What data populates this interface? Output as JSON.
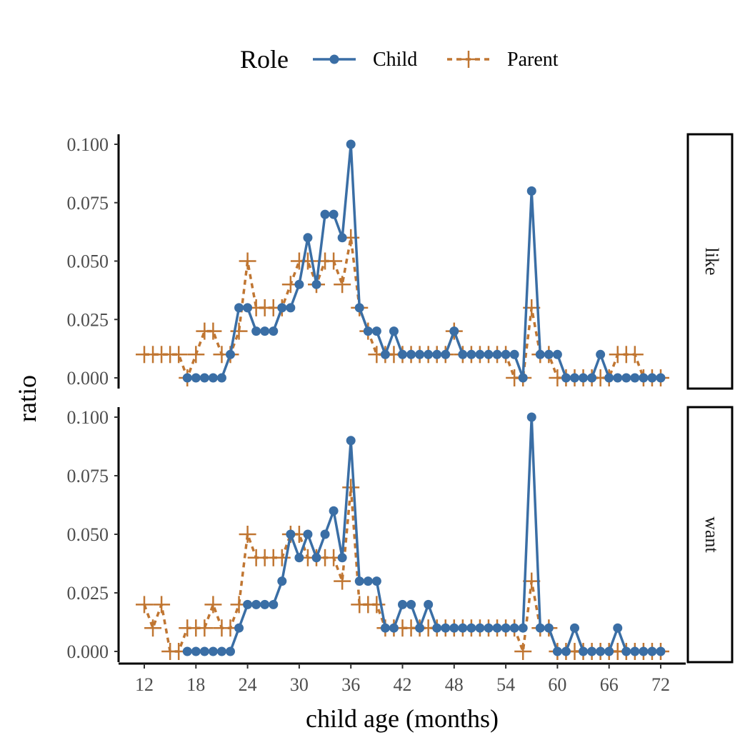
{
  "chart_data": {
    "type": "line",
    "legend": {
      "title": "Role",
      "placement": "top",
      "entries": [
        {
          "name": "Child",
          "color": "#3a6ea5",
          "line": "solid",
          "marker": "circle"
        },
        {
          "name": "Parent",
          "color": "#c07632",
          "line": "dashed",
          "marker": "plus"
        }
      ]
    },
    "xlabel": "child age (months)",
    "ylabel": "ratio",
    "xlim": [
      12,
      72
    ],
    "ylim": [
      0,
      0.1
    ],
    "x_ticks": [
      "12",
      "18",
      "24",
      "30",
      "36",
      "42",
      "48",
      "54",
      "60",
      "66",
      "72"
    ],
    "y_ticks": [
      "0.000",
      "0.025",
      "0.050",
      "0.075",
      "0.100"
    ],
    "grid": false,
    "facets": [
      {
        "label": "like",
        "series": [
          {
            "name": "Child",
            "x": [
              17,
              18,
              19,
              20,
              21,
              22,
              23,
              24,
              25,
              26,
              27,
              28,
              29,
              30,
              31,
              32,
              33,
              34,
              35,
              36,
              37,
              38,
              39,
              40,
              41,
              42,
              43,
              44,
              45,
              46,
              47,
              48,
              49,
              50,
              51,
              52,
              53,
              54,
              55,
              56,
              57,
              58,
              59,
              60,
              61,
              62,
              63,
              64,
              65,
              66,
              67,
              68,
              69,
              70,
              71,
              72
            ],
            "values": [
              0,
              0,
              0,
              0,
              0,
              0.01,
              0.03,
              0.03,
              0.02,
              0.02,
              0.02,
              0.03,
              0.03,
              0.04,
              0.06,
              0.04,
              0.07,
              0.07,
              0.06,
              0.1,
              0.03,
              0.02,
              0.02,
              0.01,
              0.02,
              0.01,
              0.01,
              0.01,
              0.01,
              0.01,
              0.01,
              0.02,
              0.01,
              0.01,
              0.01,
              0.01,
              0.01,
              0.01,
              0.01,
              0,
              0.08,
              0.01,
              0.01,
              0.01,
              0,
              0,
              0,
              0,
              0.01,
              0,
              0,
              0,
              0,
              0,
              0,
              0
            ]
          },
          {
            "name": "Parent",
            "x": [
              12,
              13,
              14,
              15,
              16,
              17,
              18,
              19,
              20,
              21,
              22,
              23,
              24,
              25,
              26,
              27,
              28,
              29,
              30,
              31,
              32,
              33,
              34,
              35,
              36,
              37,
              38,
              39,
              40,
              41,
              42,
              43,
              44,
              45,
              46,
              47,
              48,
              49,
              50,
              51,
              52,
              53,
              54,
              55,
              56,
              57,
              58,
              59,
              60,
              61,
              62,
              63,
              64,
              65,
              66,
              67,
              68,
              69,
              70,
              71,
              72
            ],
            "values": [
              0.01,
              0.01,
              0.01,
              0.01,
              0.01,
              0,
              0.01,
              0.02,
              0.02,
              0.01,
              0.01,
              0.02,
              0.05,
              0.03,
              0.03,
              0.03,
              0.03,
              0.04,
              0.05,
              0.05,
              0.04,
              0.05,
              0.05,
              0.04,
              0.06,
              0.03,
              0.02,
              0.01,
              0.01,
              0.01,
              0.01,
              0.01,
              0.01,
              0.01,
              0.01,
              0.01,
              0.02,
              0.01,
              0.01,
              0.01,
              0.01,
              0.01,
              0.01,
              0,
              0,
              0.03,
              0.01,
              0.01,
              0,
              0,
              0,
              0,
              0,
              0,
              0,
              0.01,
              0.01,
              0.01,
              0,
              0,
              0
            ]
          }
        ]
      },
      {
        "label": "want",
        "series": [
          {
            "name": "Child",
            "x": [
              17,
              18,
              19,
              20,
              21,
              22,
              23,
              24,
              25,
              26,
              27,
              28,
              29,
              30,
              31,
              32,
              33,
              34,
              35,
              36,
              37,
              38,
              39,
              40,
              41,
              42,
              43,
              44,
              45,
              46,
              47,
              48,
              49,
              50,
              51,
              52,
              53,
              54,
              55,
              56,
              57,
              58,
              59,
              60,
              61,
              62,
              63,
              64,
              65,
              66,
              67,
              68,
              69,
              70,
              71,
              72
            ],
            "values": [
              0,
              0,
              0,
              0,
              0,
              0,
              0.01,
              0.02,
              0.02,
              0.02,
              0.02,
              0.03,
              0.05,
              0.04,
              0.05,
              0.04,
              0.05,
              0.06,
              0.04,
              0.09,
              0.03,
              0.03,
              0.03,
              0.01,
              0.01,
              0.02,
              0.02,
              0.01,
              0.02,
              0.01,
              0.01,
              0.01,
              0.01,
              0.01,
              0.01,
              0.01,
              0.01,
              0.01,
              0.01,
              0.01,
              0.1,
              0.01,
              0.01,
              0,
              0,
              0.01,
              0,
              0,
              0,
              0,
              0.01,
              0,
              0,
              0,
              0,
              0
            ]
          },
          {
            "name": "Parent",
            "x": [
              12,
              13,
              14,
              15,
              16,
              17,
              18,
              19,
              20,
              21,
              22,
              23,
              24,
              25,
              26,
              27,
              28,
              29,
              30,
              31,
              32,
              33,
              34,
              35,
              36,
              37,
              38,
              39,
              40,
              41,
              42,
              43,
              44,
              45,
              46,
              47,
              48,
              49,
              50,
              51,
              52,
              53,
              54,
              55,
              56,
              57,
              58,
              59,
              60,
              61,
              62,
              63,
              64,
              65,
              66,
              67,
              68,
              69,
              70,
              71,
              72
            ],
            "values": [
              0.02,
              0.01,
              0.02,
              0,
              0,
              0.01,
              0.01,
              0.01,
              0.02,
              0.01,
              0.01,
              0.02,
              0.05,
              0.04,
              0.04,
              0.04,
              0.04,
              0.05,
              0.05,
              0.04,
              0.04,
              0.04,
              0.04,
              0.03,
              0.07,
              0.02,
              0.02,
              0.02,
              0.01,
              0.01,
              0.01,
              0.01,
              0.01,
              0.01,
              0.01,
              0.01,
              0.01,
              0.01,
              0.01,
              0.01,
              0.01,
              0.01,
              0.01,
              0.01,
              0,
              0.03,
              0.01,
              0.01,
              0,
              0,
              0,
              0,
              0,
              0,
              0,
              0,
              0,
              0,
              0,
              0,
              0
            ]
          }
        ]
      }
    ]
  }
}
